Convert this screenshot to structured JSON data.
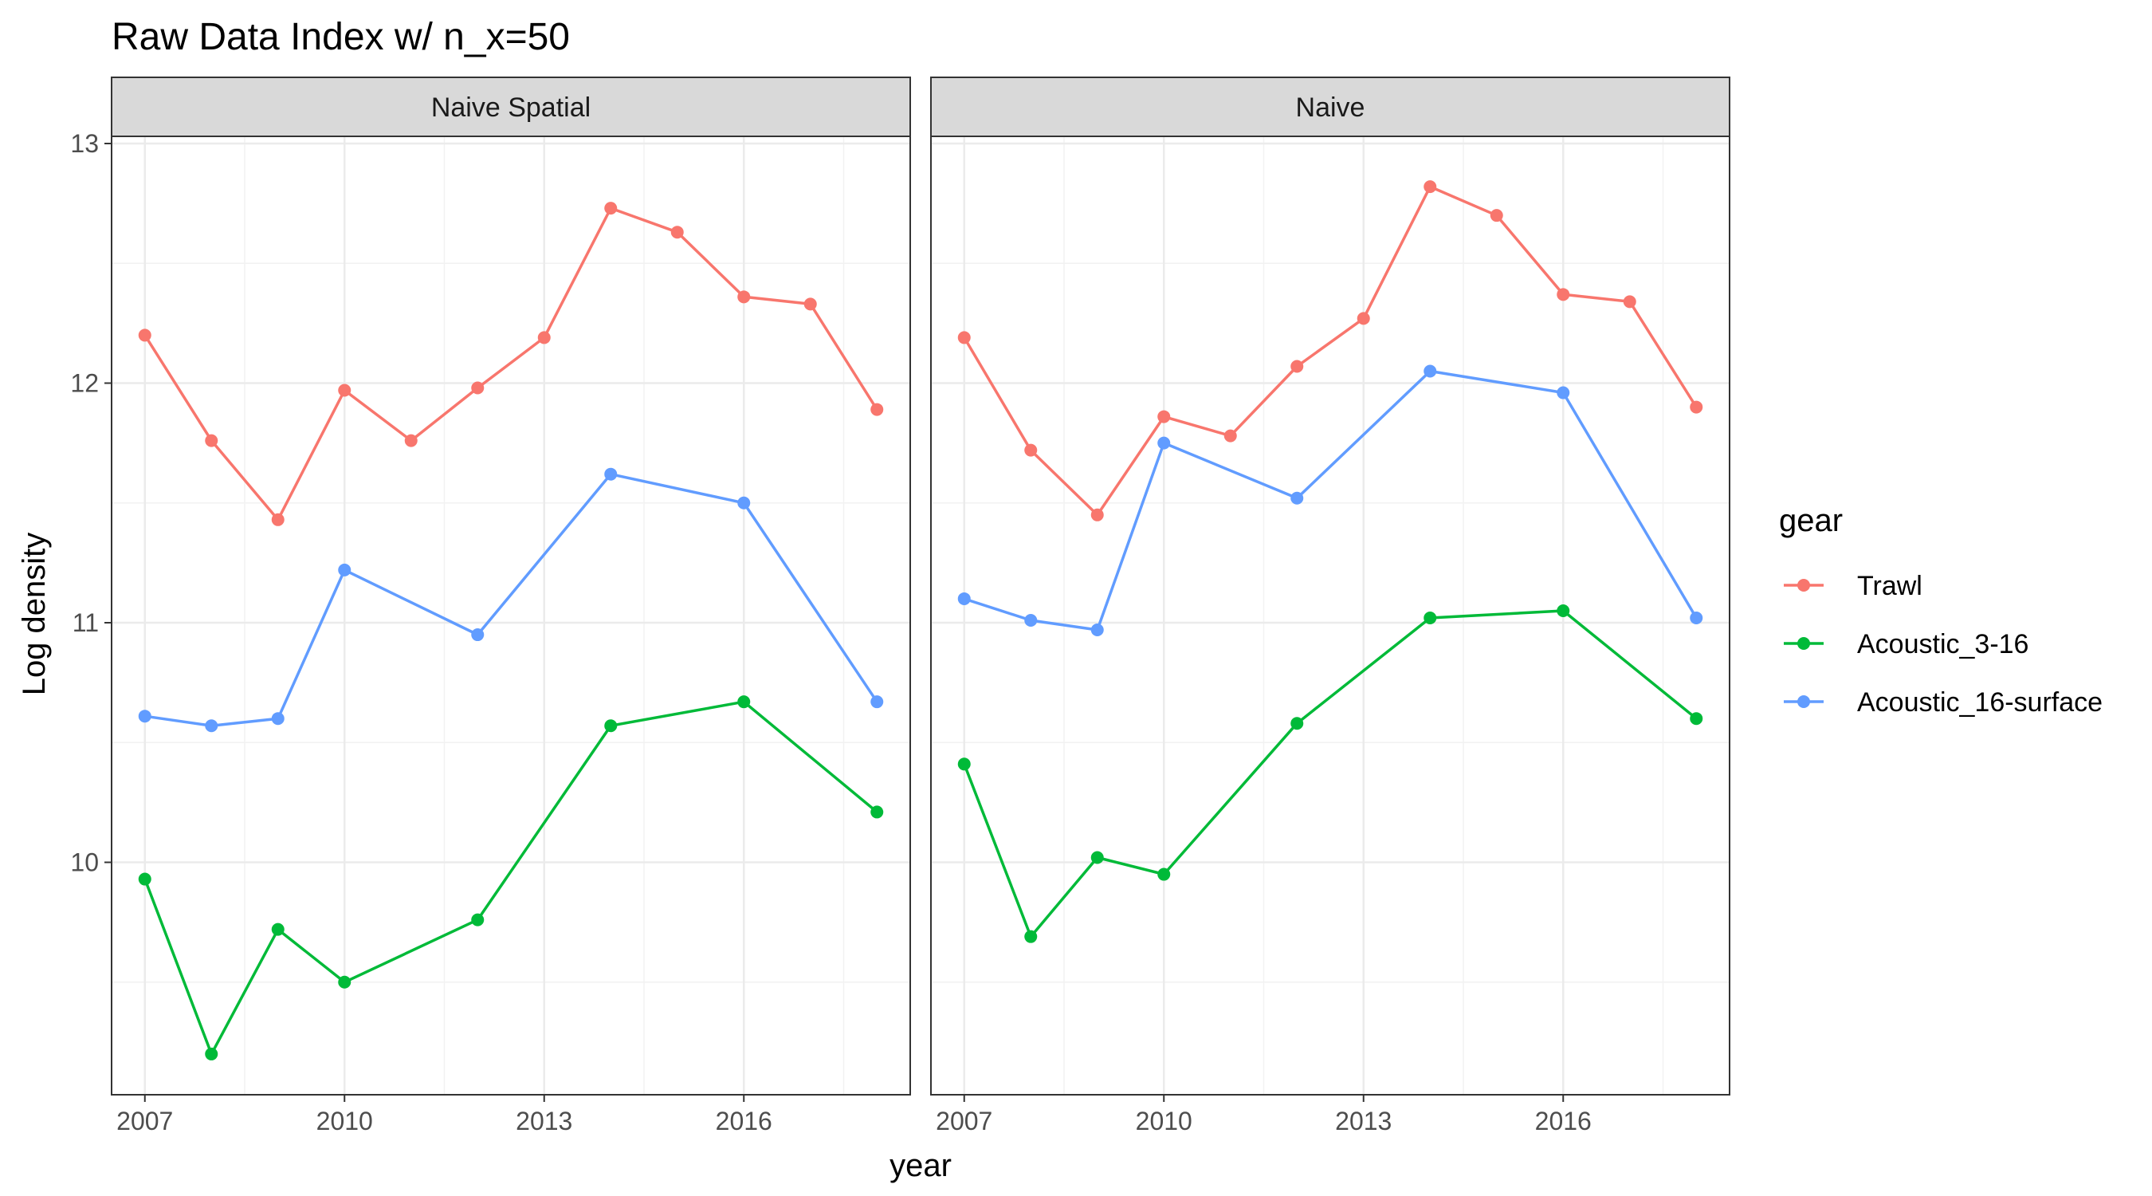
{
  "chart_data": {
    "type": "line",
    "title": "Raw Data Index w/ n_x=50",
    "xlabel": "year",
    "ylabel": "Log density",
    "x_ticks": [
      2007,
      2010,
      2013,
      2016
    ],
    "y_ticks": [
      10,
      11,
      12,
      13
    ],
    "xlim": [
      2006.5,
      2018.5
    ],
    "ylim": [
      9.03,
      13.03
    ],
    "grid": true,
    "legend": {
      "title": "gear",
      "placement": "right",
      "entries": [
        {
          "name": "Trawl",
          "color": "#F8766D"
        },
        {
          "name": "Acoustic_3-16",
          "color": "#00BA38"
        },
        {
          "name": "Acoustic_16-surface",
          "color": "#619CFF"
        }
      ]
    },
    "panels": [
      {
        "strip": "Naive Spatial",
        "series": [
          {
            "name": "Trawl",
            "color": "#F8766D",
            "x": [
              2007,
              2008,
              2009,
              2010,
              2011,
              2012,
              2013,
              2014,
              2015,
              2016,
              2017,
              2018
            ],
            "y": [
              12.2,
              11.76,
              11.43,
              11.97,
              11.76,
              11.98,
              12.19,
              12.73,
              12.63,
              12.36,
              12.33,
              11.89
            ]
          },
          {
            "name": "Acoustic_3-16",
            "color": "#00BA38",
            "x": [
              2007,
              2008,
              2009,
              2010,
              2012,
              2014,
              2016,
              2018
            ],
            "y": [
              9.93,
              9.2,
              9.72,
              9.5,
              9.76,
              10.57,
              10.67,
              10.21
            ]
          },
          {
            "name": "Acoustic_16-surface",
            "color": "#619CFF",
            "x": [
              2007,
              2008,
              2009,
              2010,
              2012,
              2014,
              2016,
              2018
            ],
            "y": [
              10.61,
              10.57,
              10.6,
              11.22,
              10.95,
              11.62,
              11.5,
              10.67
            ]
          }
        ]
      },
      {
        "strip": "Naive",
        "series": [
          {
            "name": "Trawl",
            "color": "#F8766D",
            "x": [
              2007,
              2008,
              2009,
              2010,
              2011,
              2012,
              2013,
              2014,
              2015,
              2016,
              2017,
              2018
            ],
            "y": [
              12.19,
              11.72,
              11.45,
              11.86,
              11.78,
              12.07,
              12.27,
              12.82,
              12.7,
              12.37,
              12.34,
              11.9
            ]
          },
          {
            "name": "Acoustic_3-16",
            "color": "#00BA38",
            "x": [
              2007,
              2008,
              2009,
              2010,
              2012,
              2014,
              2016,
              2018
            ],
            "y": [
              10.41,
              9.69,
              10.02,
              9.95,
              10.58,
              11.02,
              11.05,
              10.6
            ]
          },
          {
            "name": "Acoustic_16-surface",
            "color": "#619CFF",
            "x": [
              2007,
              2008,
              2009,
              2010,
              2012,
              2014,
              2016,
              2018
            ],
            "y": [
              11.1,
              11.01,
              10.97,
              11.75,
              11.52,
              12.05,
              11.96,
              11.02
            ]
          }
        ]
      }
    ]
  }
}
